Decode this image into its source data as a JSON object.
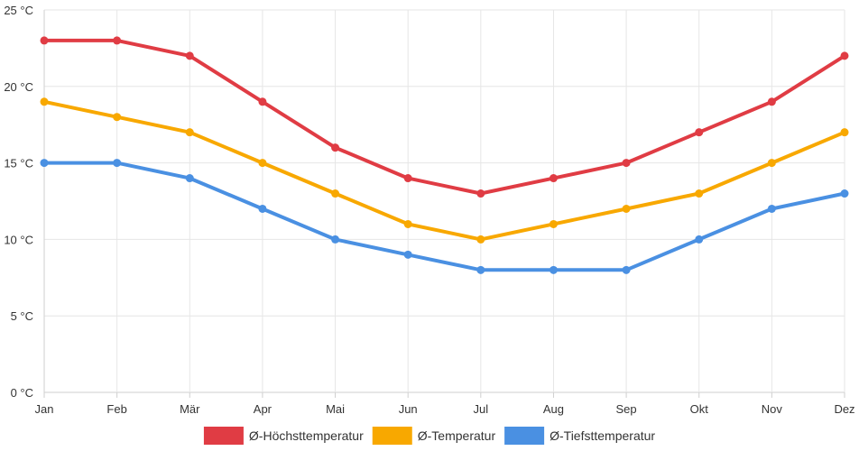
{
  "chart_data": {
    "type": "line",
    "title": "",
    "xlabel": "",
    "ylabel": "",
    "categories": [
      "Jan",
      "Feb",
      "Mär",
      "Apr",
      "Mai",
      "Jun",
      "Jul",
      "Aug",
      "Sep",
      "Okt",
      "Nov",
      "Dez"
    ],
    "y_ticks": [
      "0 °C",
      "5 °C",
      "10 °C",
      "15 °C",
      "20 °C",
      "25 °C"
    ],
    "ylim": [
      0,
      25
    ],
    "y_step": 5,
    "grid": true,
    "legend_position": "bottom-center",
    "series": [
      {
        "name": "Ø-Höchsttemperatur",
        "color": "#e03c44",
        "values": [
          23,
          23,
          22,
          19,
          16,
          14,
          13,
          14,
          15,
          17,
          19,
          22
        ]
      },
      {
        "name": "Ø-Temperatur",
        "color": "#f8a800",
        "values": [
          19,
          18,
          17,
          15,
          13,
          11,
          10,
          11,
          12,
          13,
          15,
          17
        ]
      },
      {
        "name": "Ø-Tiefsttemperatur",
        "color": "#4a90e2",
        "values": [
          15,
          15,
          14,
          12,
          10,
          9,
          8,
          8,
          8,
          10,
          12,
          13
        ]
      }
    ]
  }
}
